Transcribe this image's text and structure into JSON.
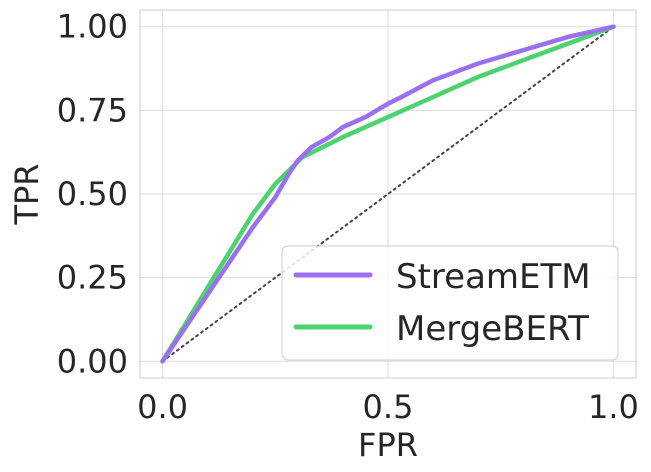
{
  "chart_data": {
    "type": "line",
    "title": "",
    "xlabel": "FPR",
    "ylabel": "TPR",
    "xlim": [
      -0.05,
      1.05
    ],
    "ylim": [
      -0.05,
      1.05
    ],
    "xticks": [
      0.0,
      0.5,
      1.0
    ],
    "xtick_labels": [
      "0.0",
      "0.5",
      "1.0"
    ],
    "yticks": [
      0.0,
      0.25,
      0.5,
      0.75,
      1.0
    ],
    "ytick_labels": [
      "0.00",
      "0.25",
      "0.50",
      "0.75",
      "1.00"
    ],
    "grid": true,
    "legend_position": "lower-right",
    "diagonal": {
      "style": "dotted",
      "color": "#444444",
      "x": [
        0,
        1
      ],
      "y": [
        0,
        1
      ]
    },
    "series": [
      {
        "name": "StreamETM",
        "color": "#9b70f0",
        "x": [
          0.0,
          0.05,
          0.1,
          0.15,
          0.2,
          0.25,
          0.28,
          0.3,
          0.33,
          0.37,
          0.4,
          0.45,
          0.5,
          0.53,
          0.6,
          0.7,
          0.8,
          0.9,
          1.0
        ],
        "y": [
          0.0,
          0.1,
          0.2,
          0.3,
          0.4,
          0.49,
          0.56,
          0.6,
          0.64,
          0.67,
          0.7,
          0.73,
          0.77,
          0.79,
          0.84,
          0.89,
          0.93,
          0.97,
          1.0
        ]
      },
      {
        "name": "MergeBERT",
        "color": "#4cd26e",
        "x": [
          0.0,
          0.05,
          0.1,
          0.15,
          0.2,
          0.25,
          0.28,
          0.31,
          0.4,
          0.5,
          0.6,
          0.7,
          0.8,
          0.9,
          1.0
        ],
        "y": [
          0.0,
          0.11,
          0.22,
          0.33,
          0.44,
          0.53,
          0.57,
          0.61,
          0.67,
          0.73,
          0.79,
          0.85,
          0.9,
          0.95,
          1.0
        ]
      }
    ]
  }
}
